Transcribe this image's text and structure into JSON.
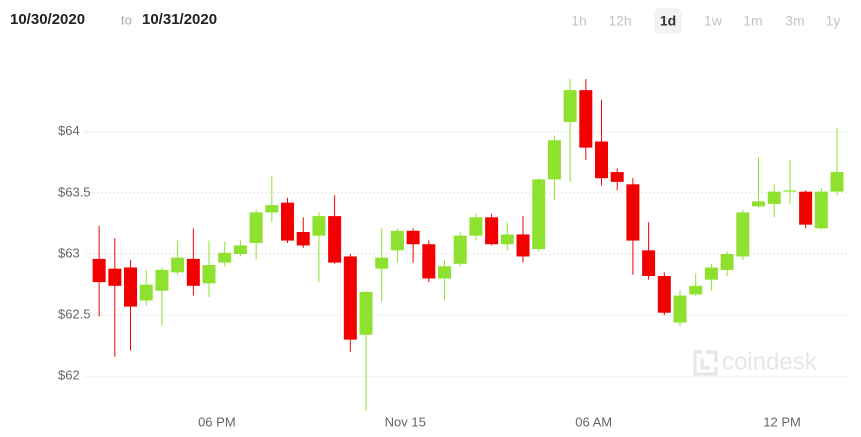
{
  "date_from": "10/30/2020",
  "date_sep": "to",
  "date_to": "10/31/2020",
  "ranges": [
    "1h",
    "12h",
    "1d",
    "1w",
    "1m",
    "3m",
    "1y"
  ],
  "selected_range": "1d",
  "watermark": "coindesk",
  "chart_data": {
    "type": "candlestick",
    "x": [
      14.25,
      14.75,
      15.25,
      15.75,
      16.25,
      16.75,
      17.25,
      17.75,
      18.25,
      18.75,
      19.25,
      19.75,
      20.25,
      20.75,
      21.25,
      21.75,
      22.25,
      22.75,
      23.25,
      23.75,
      24.25,
      24.75,
      25.25,
      25.75,
      26.25,
      26.75,
      27.25,
      27.75,
      28.25,
      28.75,
      29.25,
      29.75,
      30.25,
      30.75,
      31.25,
      31.75,
      32.25,
      32.75,
      33.25,
      33.75,
      34.25,
      34.75,
      35.25,
      35.75,
      36.25,
      36.75,
      37.25,
      37.75
    ],
    "open": [
      62.96,
      62.88,
      62.89,
      62.62,
      62.7,
      62.85,
      62.96,
      62.76,
      62.93,
      63.0,
      63.09,
      63.34,
      63.42,
      63.18,
      63.15,
      63.31,
      62.98,
      62.34,
      62.88,
      63.03,
      63.19,
      63.08,
      62.8,
      62.92,
      63.15,
      63.3,
      63.08,
      63.16,
      63.04,
      63.61,
      64.08,
      64.34,
      63.92,
      63.67,
      63.57,
      63.03,
      62.82,
      62.44,
      62.67,
      62.79,
      62.87,
      62.98,
      63.39,
      63.41,
      63.51,
      63.51,
      63.21,
      63.51
    ],
    "high": [
      63.23,
      63.13,
      62.95,
      62.87,
      62.89,
      63.11,
      63.21,
      63.11,
      63.1,
      63.11,
      63.36,
      63.64,
      63.46,
      63.3,
      63.34,
      63.48,
      63.0,
      62.7,
      63.21,
      63.21,
      63.21,
      63.11,
      62.95,
      63.18,
      63.33,
      63.33,
      63.26,
      63.31,
      63.62,
      63.97,
      64.43,
      64.43,
      64.26,
      63.7,
      63.62,
      63.26,
      62.85,
      62.7,
      62.84,
      62.92,
      63.02,
      63.36,
      63.79,
      63.57,
      63.77,
      63.52,
      63.54,
      64.03
    ],
    "low": [
      62.49,
      62.16,
      62.21,
      62.58,
      62.41,
      62.83,
      62.66,
      62.65,
      62.9,
      62.98,
      62.95,
      63.26,
      63.09,
      63.05,
      62.77,
      62.92,
      62.2,
      61.72,
      62.61,
      62.93,
      62.93,
      62.77,
      62.62,
      62.9,
      63.11,
      63.07,
      63.03,
      62.93,
      63.02,
      63.44,
      63.59,
      63.77,
      63.56,
      63.52,
      62.83,
      62.79,
      62.5,
      62.41,
      62.66,
      62.7,
      62.82,
      62.95,
      63.38,
      63.3,
      63.41,
      63.21,
      63.2,
      63.48
    ],
    "close": [
      62.77,
      62.74,
      62.57,
      62.75,
      62.87,
      62.97,
      62.74,
      62.91,
      63.01,
      63.07,
      63.34,
      63.4,
      63.11,
      63.07,
      63.31,
      62.93,
      62.3,
      62.69,
      62.97,
      63.19,
      63.08,
      62.8,
      62.9,
      63.15,
      63.3,
      63.08,
      63.16,
      62.98,
      63.61,
      63.93,
      64.34,
      63.87,
      63.62,
      63.59,
      63.11,
      62.82,
      62.52,
      62.66,
      62.74,
      62.89,
      63.0,
      63.34,
      63.43,
      63.51,
      63.52,
      63.24,
      63.51,
      63.67
    ],
    "up_color": "#8fe12f",
    "down_color": "#f20000",
    "xlim": [
      13.8,
      38.1
    ],
    "xticks": [
      {
        "value": 18,
        "label": "06 PM"
      },
      {
        "value": 24,
        "label": "Nov 15"
      },
      {
        "value": 30,
        "label": "06 AM"
      },
      {
        "value": 36,
        "label": "12 PM"
      }
    ],
    "ylim": [
      61.7,
      64.75
    ],
    "yticks": [
      {
        "value": 62,
        "label": "$62"
      },
      {
        "value": 62.5,
        "label": "$62.5"
      },
      {
        "value": 63,
        "label": "$63"
      },
      {
        "value": 63.5,
        "label": "$63.5"
      },
      {
        "value": 64,
        "label": "$64"
      }
    ],
    "grid": true
  }
}
